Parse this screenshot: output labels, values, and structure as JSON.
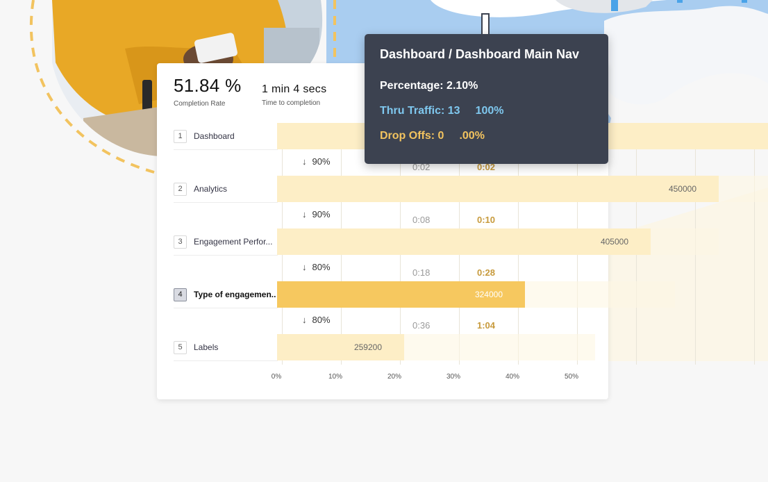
{
  "summary": {
    "completion_rate": {
      "value": "51.84 %",
      "label": "Completion Rate"
    },
    "time_to_completion": {
      "value": "1 min 4 secs",
      "label": "Time to completion"
    }
  },
  "funnel": {
    "steps": [
      {
        "num": "1",
        "label": "Dashboard",
        "value": "",
        "fraction": 1.0
      },
      {
        "num": "2",
        "label": "Analytics",
        "value": "450000",
        "fraction": 0.9
      },
      {
        "num": "3",
        "label": "Engagement Perfor...",
        "value": "405000",
        "fraction": 0.81
      },
      {
        "num": "4",
        "label": "Type of engagemen..",
        "value": "324000",
        "fraction": 0.648,
        "active": true
      },
      {
        "num": "5",
        "label": "Labels",
        "value": "259200",
        "fraction": 0.5184
      }
    ],
    "transitions": [
      {
        "pct": "90%",
        "time_a": "0:02",
        "time_b": "0:02"
      },
      {
        "pct": "90%",
        "time_a": "0:08",
        "time_b": "0:10"
      },
      {
        "pct": "80%",
        "time_a": "0:18",
        "time_b": "0:28"
      },
      {
        "pct": "80%",
        "time_a": "0:36",
        "time_b": "1:04"
      }
    ],
    "axis_ticks": [
      "0%",
      "10%",
      "20%",
      "30%",
      "40%",
      "50%"
    ]
  },
  "tooltip": {
    "title": "Dashboard / Dashboard Main Nav",
    "percentage": "Percentage: 2.10%",
    "thru_traffic": "Thru Traffic: 13",
    "thru_traffic_pct": "100%",
    "drop_offs": "Drop Offs: 0",
    "drop_offs_pct": ".00%"
  },
  "colors": {
    "bar": "#fdeec6",
    "bar_active": "#f6c85f",
    "tooltip_bg": "#3c4250",
    "tooltip_blue": "#7fc8ef",
    "tooltip_yellow": "#f2c35f"
  }
}
